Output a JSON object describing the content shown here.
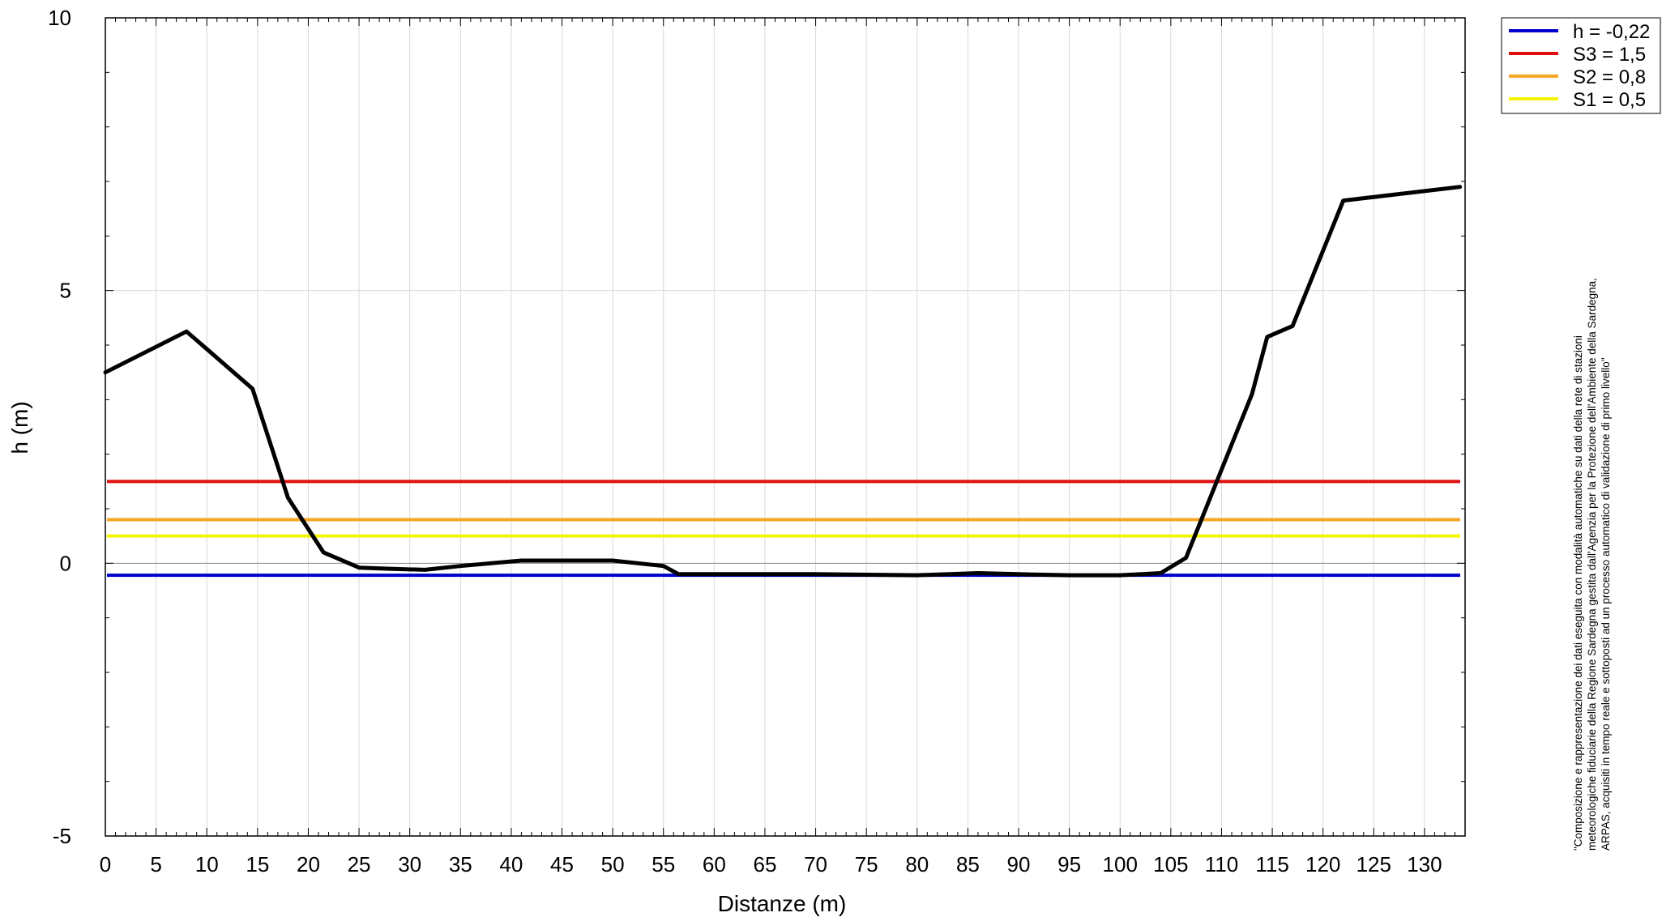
{
  "chart_data": {
    "type": "line",
    "title": "",
    "xlabel": "Distanze (m)",
    "ylabel": "h (m)",
    "xlim": [
      0,
      134
    ],
    "ylim": [
      -5,
      10
    ],
    "x_ticks": [
      0,
      5,
      10,
      15,
      20,
      25,
      30,
      35,
      40,
      45,
      50,
      55,
      60,
      65,
      70,
      75,
      80,
      85,
      90,
      95,
      100,
      105,
      110,
      115,
      120,
      125,
      130
    ],
    "y_ticks": [
      -5,
      0,
      5,
      10
    ],
    "grid": true,
    "legend_position": "top-right",
    "profile": {
      "color": "#000000",
      "x": [
        0,
        8,
        14.5,
        18,
        21.5,
        25,
        28,
        31.5,
        35,
        41,
        45,
        50,
        55,
        56.5,
        60,
        70,
        80,
        86,
        90,
        95,
        100,
        104,
        106.5,
        113,
        114.5,
        117,
        122,
        133.5
      ],
      "y": [
        3.5,
        4.25,
        3.2,
        1.2,
        0.2,
        -0.08,
        -0.1,
        -0.12,
        -0.05,
        0.05,
        0.05,
        0.05,
        -0.05,
        -0.2,
        -0.2,
        -0.2,
        -0.22,
        -0.18,
        -0.2,
        -0.22,
        -0.22,
        -0.18,
        0.1,
        3.1,
        4.15,
        4.35,
        6.65,
        6.9
      ]
    },
    "series": [
      {
        "name": "h = -0,22",
        "value": -0.22,
        "color": "#0000cc"
      },
      {
        "name": "S3 = 1,5",
        "value": 1.5,
        "color": "#e01010"
      },
      {
        "name": "S2 = 0,8",
        "value": 0.8,
        "color": "#f5a623"
      },
      {
        "name": "S1 = 0,5",
        "value": 0.5,
        "color": "#f5f500"
      }
    ],
    "note_lines": [
      "\"Composizione e rappresentazione dei dati eseguita con modalità automatiche su dati della rete di stazioni",
      "meteorologiche fiduciarie della Regione Sardegna gestita dall'Agenzia per la Protezione dell'Ambiente della Sardegna,",
      "ARPAS, acquisiti in tempo reale e sottoposti ad un processo automatico di validazione di primo livello\""
    ]
  }
}
